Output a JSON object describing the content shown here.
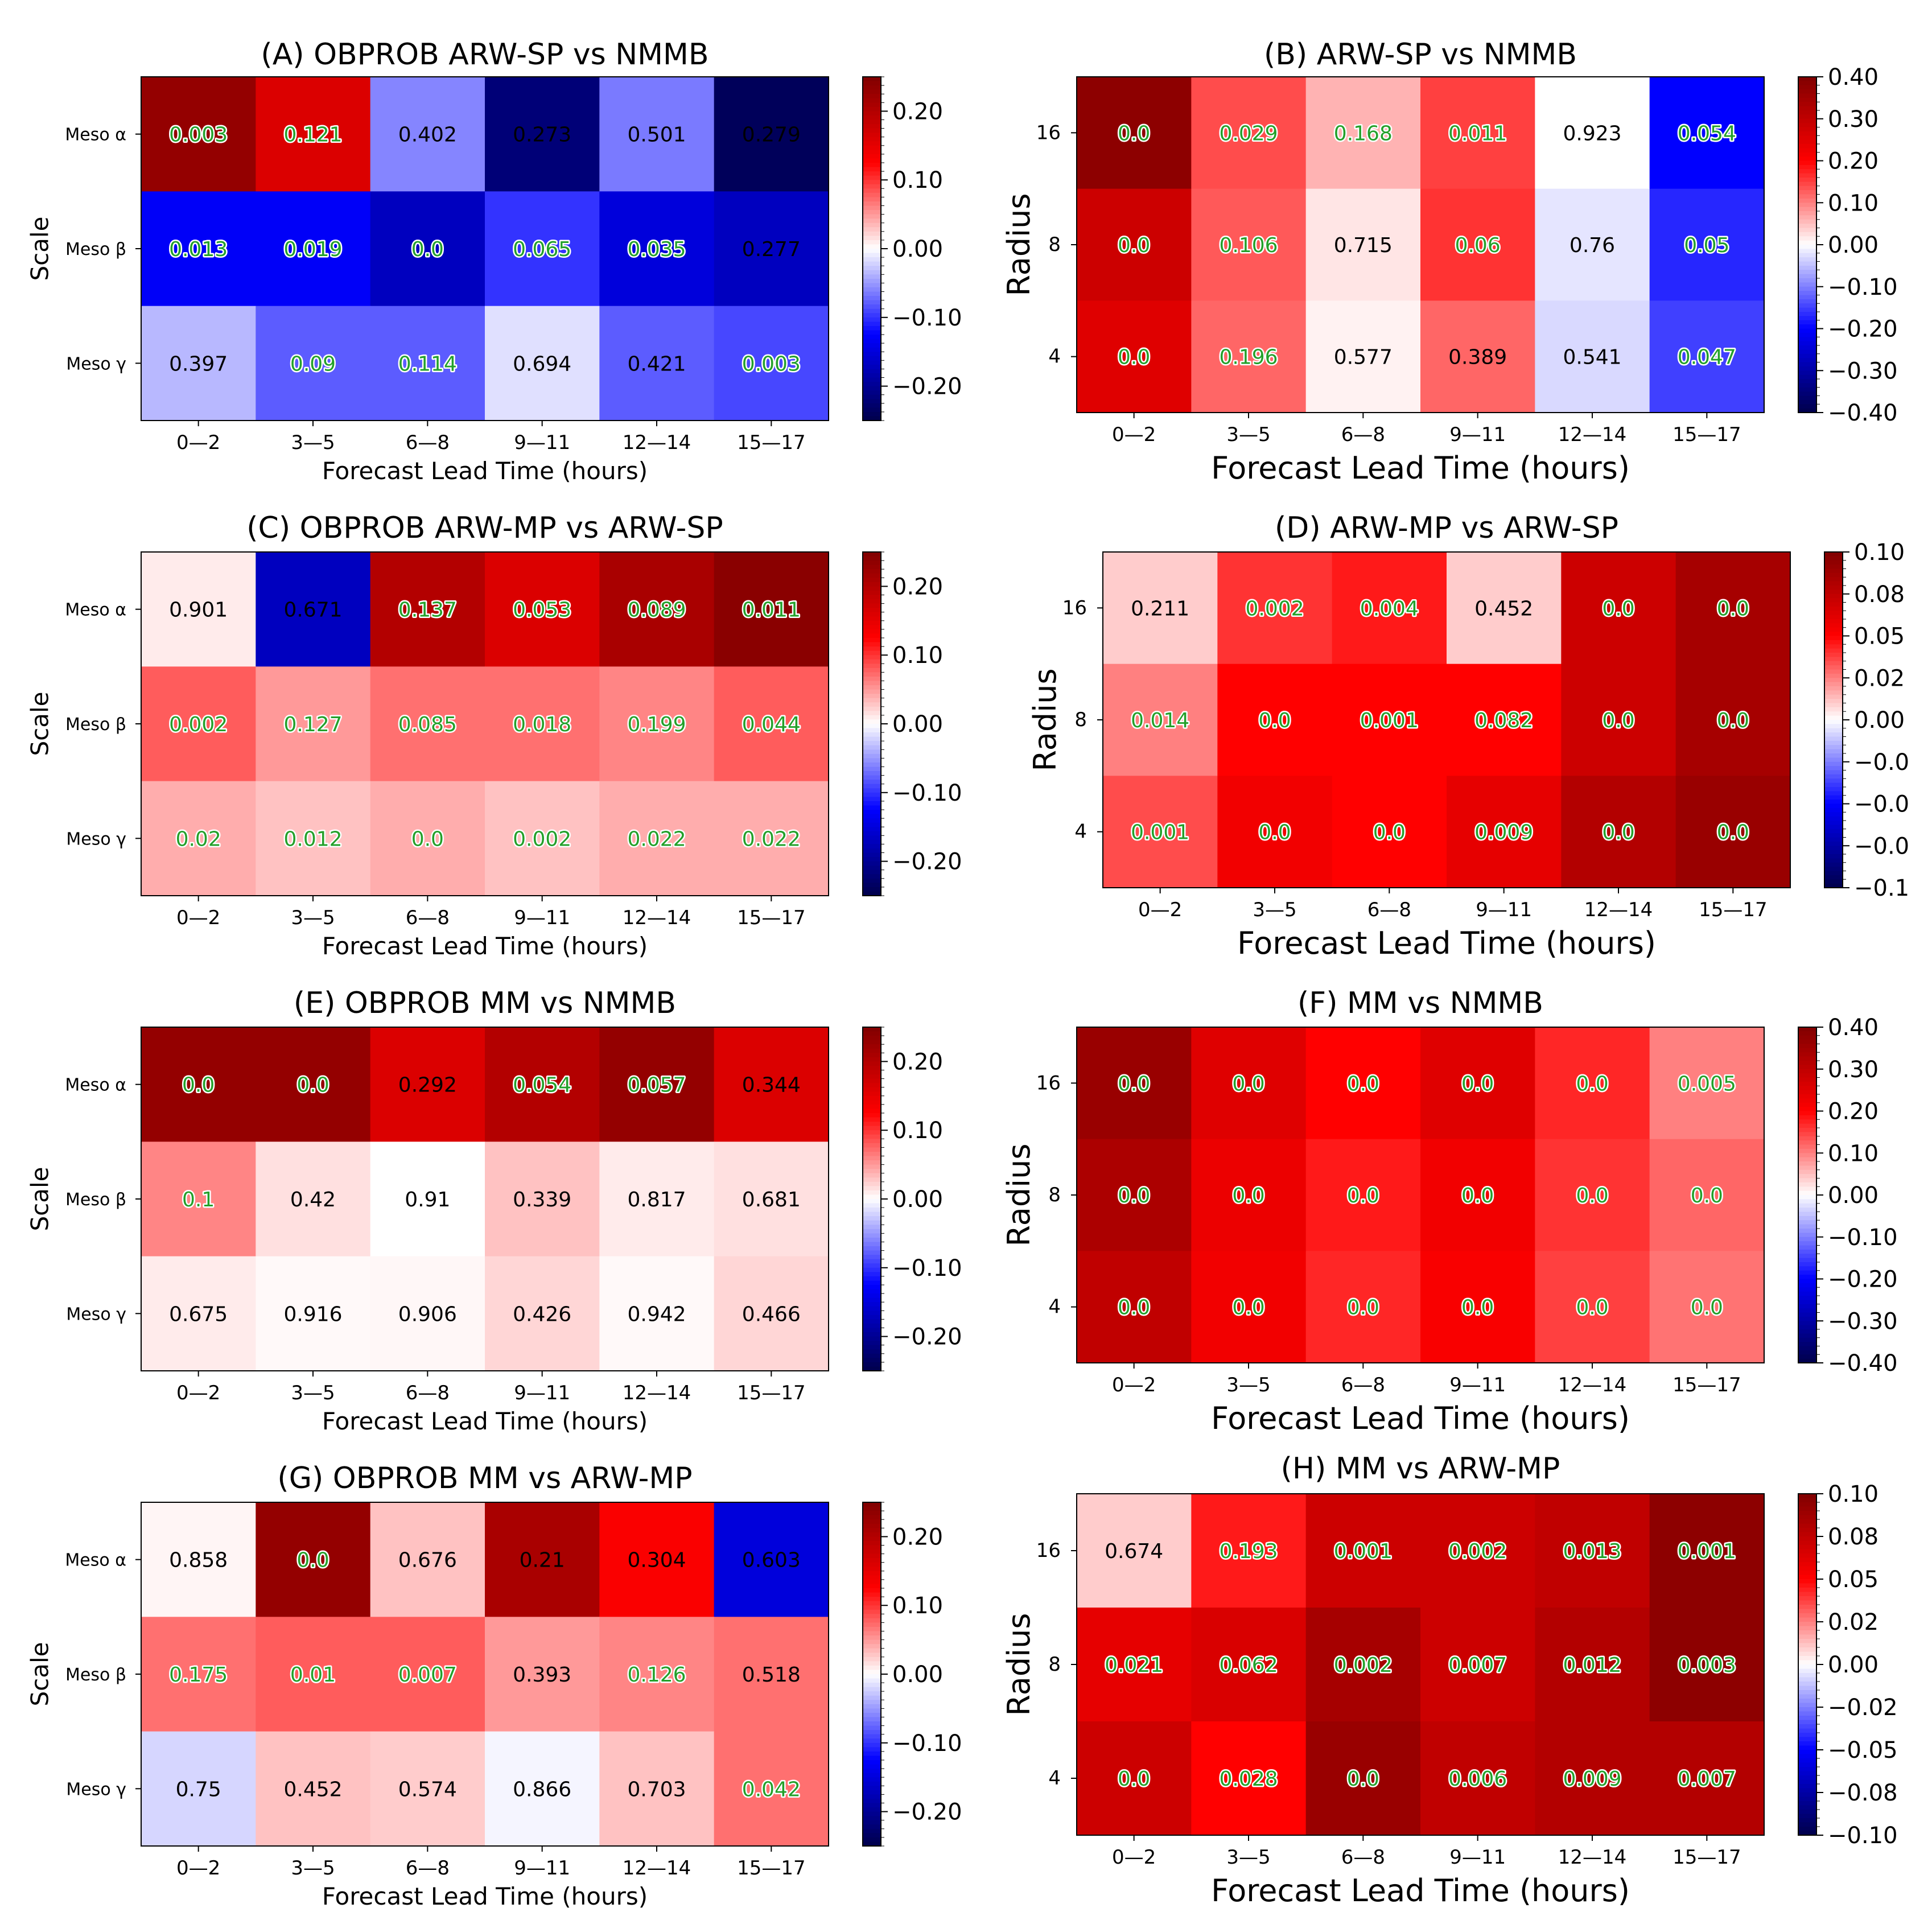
{
  "chart_data": [
    {
      "type": "heatmap",
      "title": "(A) OBPROB ARW-SP vs NMMB",
      "xlabel": "Forecast Lead Time (hours)",
      "ylabel": "Scale",
      "x_categories": [
        "0—2",
        "3—5",
        "6—8",
        "9—11",
        "12—14",
        "15—17"
      ],
      "y_categories": [
        "Meso α",
        "Meso β",
        "Meso γ"
      ],
      "colorbar": {
        "range": [
          -0.25,
          0.25
        ],
        "ticks": [
          "0.20",
          "0.10",
          "0.00",
          "−0.10",
          "−0.20"
        ],
        "tick_values": [
          0.2,
          0.1,
          0.0,
          -0.1,
          -0.2
        ]
      },
      "cell_values": [
        [
          0.23,
          0.16,
          -0.06,
          -0.22,
          -0.065,
          -0.24
        ],
        [
          -0.13,
          -0.13,
          -0.17,
          -0.1,
          -0.15,
          -0.17
        ],
        [
          -0.035,
          -0.08,
          -0.08,
          -0.015,
          -0.08,
          -0.09
        ]
      ],
      "annotations": [
        [
          "0.003",
          "0.121",
          "0.402",
          "0.273",
          "0.501",
          "0.279"
        ],
        [
          "0.013",
          "0.019",
          "0.0",
          "0.065",
          "0.035",
          "0.277"
        ],
        [
          "0.397",
          "0.09",
          "0.114",
          "0.694",
          "0.421",
          "0.003"
        ]
      ],
      "significant": [
        [
          true,
          true,
          false,
          false,
          false,
          false
        ],
        [
          true,
          true,
          true,
          true,
          true,
          false
        ],
        [
          false,
          true,
          true,
          false,
          false,
          true
        ]
      ]
    },
    {
      "type": "heatmap",
      "title": "(B) ARW-SP vs NMMB",
      "xlabel": "Forecast Lead Time (hours)",
      "ylabel": "Radius",
      "x_categories": [
        "0—2",
        "3—5",
        "6—8",
        "9—11",
        "12—14",
        "15—17"
      ],
      "y_categories": [
        "16",
        "8",
        "4"
      ],
      "colorbar": {
        "range": [
          -0.4,
          0.4
        ],
        "ticks": [
          "0.40",
          "0.30",
          "0.20",
          "0.10",
          "0.00",
          "−0.10",
          "−0.20",
          "−0.30",
          "−0.40"
        ],
        "tick_values": [
          0.4,
          0.3,
          0.2,
          0.1,
          0.0,
          -0.1,
          -0.2,
          -0.3,
          -0.4
        ]
      },
      "cell_values": [
        [
          0.38,
          0.14,
          0.06,
          0.15,
          0.0,
          -0.2
        ],
        [
          0.28,
          0.13,
          0.02,
          0.16,
          -0.02,
          -0.17
        ],
        [
          0.25,
          0.12,
          0.01,
          0.12,
          -0.03,
          -0.15
        ]
      ],
      "annotations": [
        [
          "0.0",
          "0.029",
          "0.168",
          "0.011",
          "0.923",
          "0.054"
        ],
        [
          "0.0",
          "0.106",
          "0.715",
          "0.06",
          "0.76",
          "0.05"
        ],
        [
          "0.0",
          "0.196",
          "0.577",
          "0.389",
          "0.541",
          "0.047"
        ]
      ],
      "significant": [
        [
          true,
          true,
          true,
          true,
          false,
          true
        ],
        [
          true,
          true,
          false,
          true,
          false,
          true
        ],
        [
          true,
          true,
          false,
          false,
          false,
          true
        ]
      ]
    },
    {
      "type": "heatmap",
      "title": "(C) OBPROB ARW-MP vs ARW-SP",
      "xlabel": "Forecast Lead Time (hours)",
      "ylabel": "Scale",
      "x_categories": [
        "0—2",
        "3—5",
        "6—8",
        "9—11",
        "12—14",
        "15—17"
      ],
      "y_categories": [
        "Meso α",
        "Meso β",
        "Meso γ"
      ],
      "colorbar": {
        "range": [
          -0.25,
          0.25
        ],
        "ticks": [
          "0.20",
          "0.10",
          "0.00",
          "−0.10",
          "−0.20"
        ],
        "tick_values": [
          0.2,
          0.1,
          0.0,
          -0.1,
          -0.2
        ]
      },
      "cell_values": [
        [
          0.01,
          -0.17,
          0.2,
          0.16,
          0.21,
          0.24
        ],
        [
          0.08,
          0.05,
          0.07,
          0.07,
          0.06,
          0.08
        ],
        [
          0.04,
          0.03,
          0.04,
          0.03,
          0.04,
          0.04
        ]
      ],
      "annotations": [
        [
          "0.901",
          "0.671",
          "0.137",
          "0.053",
          "0.089",
          "0.011"
        ],
        [
          "0.002",
          "0.127",
          "0.085",
          "0.018",
          "0.199",
          "0.044"
        ],
        [
          "0.02",
          "0.012",
          "0.0",
          "0.002",
          "0.022",
          "0.022"
        ]
      ],
      "significant": [
        [
          false,
          false,
          true,
          true,
          true,
          true
        ],
        [
          true,
          true,
          true,
          true,
          true,
          true
        ],
        [
          true,
          true,
          true,
          true,
          true,
          true
        ]
      ]
    },
    {
      "type": "heatmap",
      "title": "(D) ARW-MP vs ARW-SP",
      "xlabel": "Forecast Lead Time (hours)",
      "ylabel": "Radius",
      "x_categories": [
        "0—2",
        "3—5",
        "6—8",
        "9—11",
        "12—14",
        "15—17"
      ],
      "y_categories": [
        "16",
        "8",
        "4"
      ],
      "colorbar": {
        "range": [
          -0.1,
          0.1
        ],
        "ticks": [
          "0.10",
          "0.08",
          "0.05",
          "0.02",
          "0.00",
          "−0.0",
          "−0.0",
          "−0.0",
          "−0.1"
        ],
        "tick_values": [
          0.1,
          0.075,
          0.05,
          0.025,
          0.0,
          -0.025,
          -0.05,
          -0.075,
          -0.1
        ]
      },
      "cell_values": [
        [
          0.01,
          0.04,
          0.045,
          0.01,
          0.07,
          0.085
        ],
        [
          0.025,
          0.05,
          0.05,
          0.05,
          0.07,
          0.085
        ],
        [
          0.035,
          0.055,
          0.05,
          0.06,
          0.08,
          0.09
        ]
      ],
      "annotations": [
        [
          "0.211",
          "0.002",
          "0.004",
          "0.452",
          "0.0",
          "0.0"
        ],
        [
          "0.014",
          "0.0",
          "0.001",
          "0.082",
          "0.0",
          "0.0"
        ],
        [
          "0.001",
          "0.0",
          "0.0",
          "0.009",
          "0.0",
          "0.0"
        ]
      ],
      "significant": [
        [
          false,
          true,
          true,
          false,
          true,
          true
        ],
        [
          true,
          true,
          true,
          true,
          true,
          true
        ],
        [
          true,
          true,
          true,
          true,
          true,
          true
        ]
      ]
    },
    {
      "type": "heatmap",
      "title": "(E) OBPROB MM vs NMMB",
      "xlabel": "Forecast Lead Time (hours)",
      "ylabel": "Scale",
      "x_categories": [
        "0—2",
        "3—5",
        "6—8",
        "9—11",
        "12—14",
        "15—17"
      ],
      "y_categories": [
        "Meso α",
        "Meso β",
        "Meso γ"
      ],
      "colorbar": {
        "range": [
          -0.25,
          0.25
        ],
        "ticks": [
          "0.20",
          "0.10",
          "0.00",
          "−0.10",
          "−0.20"
        ],
        "tick_values": [
          0.2,
          0.1,
          0.0,
          -0.1,
          -0.2
        ]
      },
      "cell_values": [
        [
          0.23,
          0.23,
          0.16,
          0.2,
          0.23,
          0.16
        ],
        [
          0.06,
          0.015,
          0.0,
          0.03,
          0.01,
          0.015
        ],
        [
          0.01,
          0.003,
          0.004,
          0.02,
          0.003,
          0.02
        ]
      ],
      "annotations": [
        [
          "0.0",
          "0.0",
          "0.292",
          "0.054",
          "0.057",
          "0.344"
        ],
        [
          "0.1",
          "0.42",
          "0.91",
          "0.339",
          "0.817",
          "0.681"
        ],
        [
          "0.675",
          "0.916",
          "0.906",
          "0.426",
          "0.942",
          "0.466"
        ]
      ],
      "significant": [
        [
          true,
          true,
          false,
          true,
          true,
          false
        ],
        [
          true,
          false,
          false,
          false,
          false,
          false
        ],
        [
          false,
          false,
          false,
          false,
          false,
          false
        ]
      ]
    },
    {
      "type": "heatmap",
      "title": "(F) MM vs NMMB",
      "xlabel": "Forecast Lead Time (hours)",
      "ylabel": "Radius",
      "x_categories": [
        "0—2",
        "3—5",
        "6—8",
        "9—11",
        "12—14",
        "15—17"
      ],
      "y_categories": [
        "16",
        "8",
        "4"
      ],
      "colorbar": {
        "range": [
          -0.4,
          0.4
        ],
        "ticks": [
          "0.40",
          "0.30",
          "0.20",
          "0.10",
          "0.00",
          "−0.10",
          "−0.20",
          "−0.30",
          "−0.40"
        ],
        "tick_values": [
          0.4,
          0.3,
          0.2,
          0.1,
          0.0,
          -0.1,
          -0.2,
          -0.3,
          -0.4
        ]
      },
      "cell_values": [
        [
          0.36,
          0.25,
          0.2,
          0.25,
          0.17,
          0.1
        ],
        [
          0.33,
          0.23,
          0.18,
          0.22,
          0.16,
          0.12
        ],
        [
          0.3,
          0.22,
          0.17,
          0.21,
          0.15,
          0.11
        ]
      ],
      "annotations": [
        [
          "0.0",
          "0.0",
          "0.0",
          "0.0",
          "0.0",
          "0.005"
        ],
        [
          "0.0",
          "0.0",
          "0.0",
          "0.0",
          "0.0",
          "0.0"
        ],
        [
          "0.0",
          "0.0",
          "0.0",
          "0.0",
          "0.0",
          "0.0"
        ]
      ],
      "significant": [
        [
          true,
          true,
          true,
          true,
          true,
          true
        ],
        [
          true,
          true,
          true,
          true,
          true,
          true
        ],
        [
          true,
          true,
          true,
          true,
          true,
          true
        ]
      ]
    },
    {
      "type": "heatmap",
      "title": "(G) OBPROB MM vs ARW-MP",
      "xlabel": "Forecast Lead Time (hours)",
      "ylabel": "Scale",
      "x_categories": [
        "0—2",
        "3—5",
        "6—8",
        "9—11",
        "12—14",
        "15—17"
      ],
      "y_categories": [
        "Meso α",
        "Meso β",
        "Meso γ"
      ],
      "colorbar": {
        "range": [
          -0.25,
          0.25
        ],
        "ticks": [
          "0.20",
          "0.10",
          "0.00",
          "−0.10",
          "−0.20"
        ],
        "tick_values": [
          0.2,
          0.1,
          0.0,
          -0.1,
          -0.2
        ]
      },
      "cell_values": [
        [
          0.005,
          0.23,
          0.03,
          0.21,
          0.13,
          -0.15
        ],
        [
          0.07,
          0.08,
          0.08,
          0.05,
          0.06,
          0.07
        ],
        [
          -0.02,
          0.03,
          0.025,
          -0.005,
          0.03,
          0.07
        ]
      ],
      "annotations": [
        [
          "0.858",
          "0.0",
          "0.676",
          "0.21",
          "0.304",
          "0.603"
        ],
        [
          "0.175",
          "0.01",
          "0.007",
          "0.393",
          "0.126",
          "0.518"
        ],
        [
          "0.75",
          "0.452",
          "0.574",
          "0.866",
          "0.703",
          "0.042"
        ]
      ],
      "significant": [
        [
          false,
          true,
          false,
          false,
          false,
          false
        ],
        [
          true,
          true,
          true,
          false,
          true,
          false
        ],
        [
          false,
          false,
          false,
          false,
          false,
          true
        ]
      ]
    },
    {
      "type": "heatmap",
      "title": "(H) MM vs ARW-MP",
      "xlabel": "Forecast Lead Time (hours)",
      "ylabel": "Radius",
      "x_categories": [
        "0—2",
        "3—5",
        "6—8",
        "9—11",
        "12—14",
        "15—17"
      ],
      "y_categories": [
        "16",
        "8",
        "4"
      ],
      "colorbar": {
        "range": [
          -0.1,
          0.1
        ],
        "ticks": [
          "0.10",
          "0.08",
          "0.05",
          "0.02",
          "0.00",
          "−0.02",
          "−0.05",
          "−0.08",
          "−0.10"
        ],
        "tick_values": [
          0.1,
          0.075,
          0.05,
          0.025,
          0.0,
          -0.025,
          -0.05,
          -0.075,
          -0.1
        ]
      },
      "cell_values": [
        [
          0.01,
          0.045,
          0.07,
          0.07,
          0.075,
          0.095
        ],
        [
          0.06,
          0.065,
          0.085,
          0.07,
          0.08,
          0.095
        ],
        [
          0.07,
          0.05,
          0.09,
          0.075,
          0.08,
          0.08
        ]
      ],
      "annotations": [
        [
          "0.674",
          "0.193",
          "0.001",
          "0.002",
          "0.013",
          "0.001"
        ],
        [
          "0.021",
          "0.062",
          "0.002",
          "0.007",
          "0.012",
          "0.003"
        ],
        [
          "0.0",
          "0.028",
          "0.0",
          "0.006",
          "0.009",
          "0.007"
        ]
      ],
      "significant": [
        [
          false,
          true,
          true,
          true,
          true,
          true
        ],
        [
          true,
          true,
          true,
          true,
          true,
          true
        ],
        [
          true,
          true,
          true,
          true,
          true,
          true
        ]
      ]
    }
  ]
}
